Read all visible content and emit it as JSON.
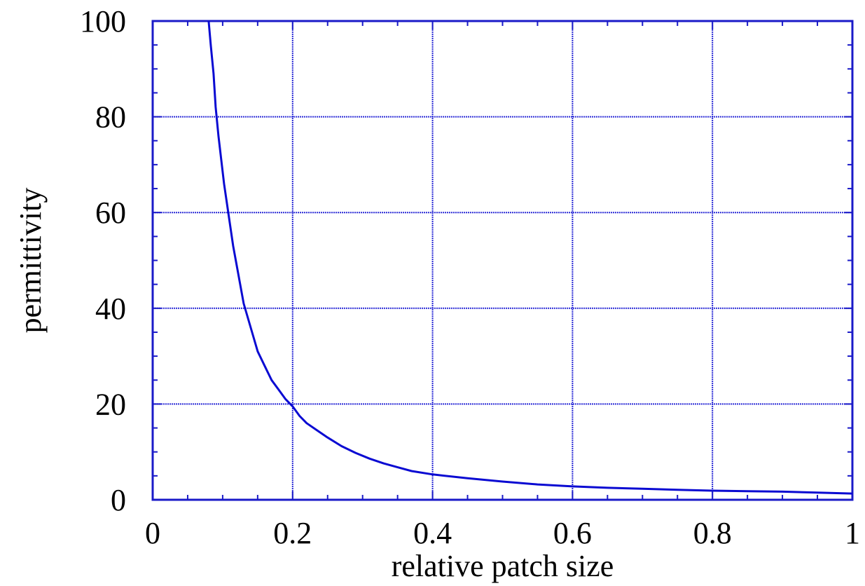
{
  "chart_data": {
    "type": "line",
    "title": "",
    "xlabel": "relative patch size",
    "ylabel": "permittivity",
    "xlim": [
      0,
      1
    ],
    "ylim": [
      0,
      100
    ],
    "x_ticks": [
      0,
      0.2,
      0.4,
      0.6,
      0.8,
      1
    ],
    "y_ticks": [
      0,
      20,
      40,
      60,
      80,
      100
    ],
    "x_tick_labels": [
      "0",
      "0.2",
      "0.4",
      "0.6",
      "0.8",
      "1"
    ],
    "y_tick_labels": [
      "0",
      "20",
      "40",
      "60",
      "80",
      "100"
    ],
    "grid": true,
    "colors": {
      "axis": "#1a1ac8",
      "series": "#0a0ad2",
      "grid": "#2a2ad6"
    },
    "series": [
      {
        "values_xy": [
          [
            0.08,
            100
          ],
          [
            0.083,
            95
          ],
          [
            0.087,
            89
          ],
          [
            0.09,
            82
          ],
          [
            0.094,
            76
          ],
          [
            0.098,
            71
          ],
          [
            0.102,
            66
          ],
          [
            0.106,
            62
          ],
          [
            0.11,
            58
          ],
          [
            0.115,
            53
          ],
          [
            0.12,
            49
          ],
          [
            0.125,
            45
          ],
          [
            0.13,
            41
          ],
          [
            0.136,
            38
          ],
          [
            0.142,
            35
          ],
          [
            0.15,
            31
          ],
          [
            0.16,
            28
          ],
          [
            0.17,
            25
          ],
          [
            0.18,
            23
          ],
          [
            0.19,
            21
          ],
          [
            0.2,
            19.5
          ],
          [
            0.21,
            17.5
          ],
          [
            0.22,
            16
          ],
          [
            0.235,
            14.5
          ],
          [
            0.25,
            13
          ],
          [
            0.27,
            11.2
          ],
          [
            0.29,
            9.8
          ],
          [
            0.31,
            8.6
          ],
          [
            0.33,
            7.6
          ],
          [
            0.35,
            6.8
          ],
          [
            0.37,
            6.0
          ],
          [
            0.4,
            5.3
          ],
          [
            0.45,
            4.5
          ],
          [
            0.5,
            3.8
          ],
          [
            0.55,
            3.2
          ],
          [
            0.6,
            2.8
          ],
          [
            0.65,
            2.5
          ],
          [
            0.7,
            2.3
          ],
          [
            0.75,
            2.1
          ],
          [
            0.8,
            1.9
          ],
          [
            0.85,
            1.8
          ],
          [
            0.9,
            1.7
          ],
          [
            0.95,
            1.5
          ],
          [
            1.0,
            1.3
          ]
        ]
      }
    ]
  }
}
